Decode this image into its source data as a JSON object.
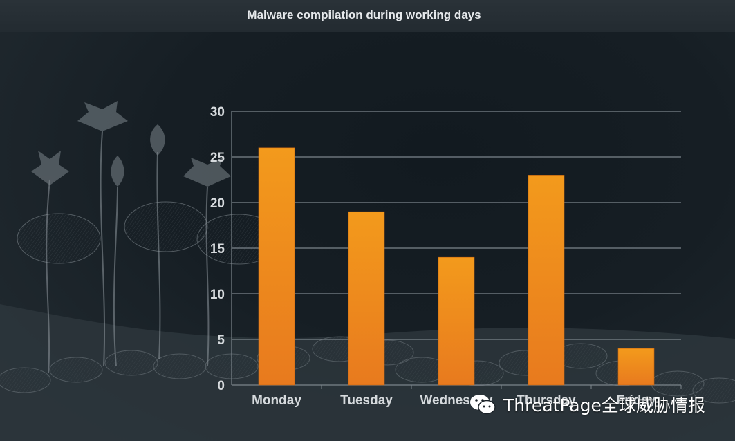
{
  "title": "Malware compilation during working days",
  "watermark": {
    "text": "ThreatPage全球威胁情报",
    "icon": "wechat-icon"
  },
  "colors": {
    "bar_top": "#f39a1c",
    "bar_bottom": "#e87a1e",
    "grid": "#7c858c",
    "text": "#d6dadd"
  },
  "chart_data": {
    "type": "bar",
    "title": "Malware compilation during working days",
    "xlabel": "",
    "ylabel": "",
    "categories": [
      "Monday",
      "Tuesday",
      "Wednesday",
      "Thursday",
      "Friday"
    ],
    "values": [
      26,
      19,
      14,
      23,
      4
    ],
    "ylim": [
      0,
      30
    ],
    "yticks": [
      0,
      5,
      10,
      15,
      20,
      25,
      30
    ],
    "grid": true,
    "legend": "none"
  }
}
